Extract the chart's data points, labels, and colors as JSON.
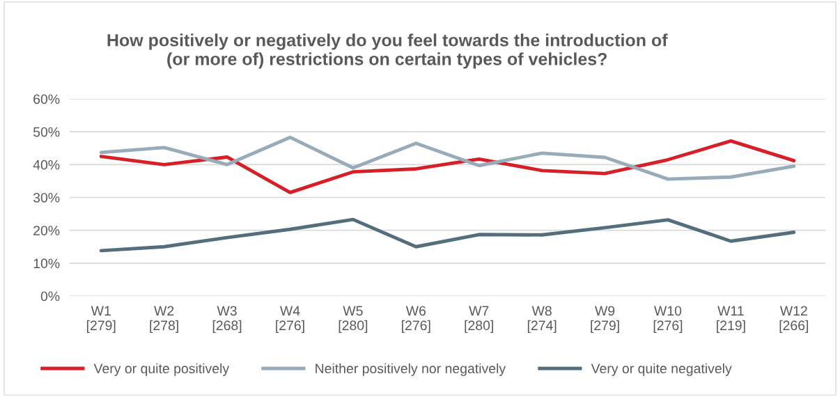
{
  "chart_data": {
    "type": "line",
    "title": "How positively or negatively do you feel towards the introduction of\n(or more of) restrictions on certain types of vehicles?",
    "categories": [
      "W1\n[279]",
      "W2\n[278]",
      "W3\n[268]",
      "W4\n[276]",
      "W5\n[280]",
      "W6\n[276]",
      "W7\n[280]",
      "W8\n[274]",
      "W9\n[279]",
      "W10\n[276]",
      "W11\n[219]",
      "W12\n[266]"
    ],
    "series": [
      {
        "name": "Very or quite positively",
        "color": "#d71f27",
        "values": [
          0.425,
          0.4,
          0.423,
          0.315,
          0.378,
          0.387,
          0.417,
          0.382,
          0.373,
          0.415,
          0.472,
          0.412
        ]
      },
      {
        "name": "Neither positively nor negatively",
        "color": "#97abb8",
        "values": [
          0.437,
          0.452,
          0.4,
          0.483,
          0.39,
          0.465,
          0.397,
          0.435,
          0.422,
          0.356,
          0.362,
          0.395
        ]
      },
      {
        "name": "Very or quite negatively",
        "color": "#546e7d",
        "values": [
          0.138,
          0.15,
          0.178,
          0.203,
          0.233,
          0.15,
          0.187,
          0.186,
          0.208,
          0.232,
          0.167,
          0.194
        ]
      }
    ],
    "ylim": [
      0,
      0.6
    ],
    "yticks": [
      {
        "value": 0,
        "label": "0%"
      },
      {
        "value": 0.1,
        "label": "10%"
      },
      {
        "value": 0.2,
        "label": "20%"
      },
      {
        "value": 0.3,
        "label": "30%"
      },
      {
        "value": 0.4,
        "label": "40%"
      },
      {
        "value": 0.5,
        "label": "50%"
      },
      {
        "value": 0.6,
        "label": "60%"
      }
    ],
    "grid": "y",
    "legend": "bottom",
    "marker": "none",
    "line_style": "solid"
  }
}
